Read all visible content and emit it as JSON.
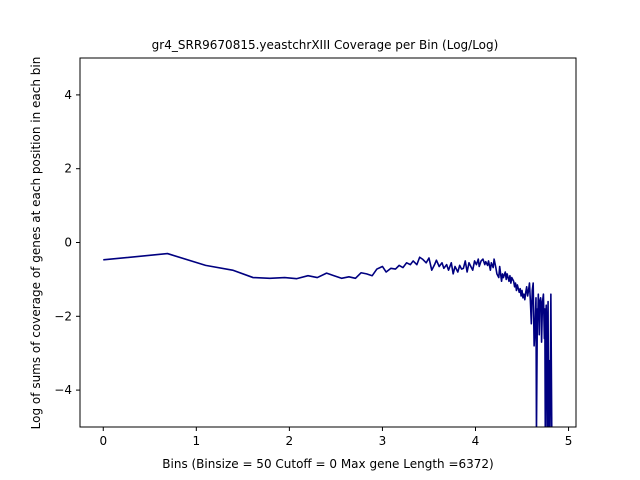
{
  "chart_data": {
    "type": "line",
    "title": "gr4_SRR9670815.yeastchrXIII Coverage per Bin (Log/Log)",
    "xlabel": "Bins  (Binsize = 50 Cutoff = 0 Max gene Length =6372)",
    "ylabel": "Log of sums of coverage of genes at each position in each bin",
    "xlim": [
      -0.25,
      5.08
    ],
    "ylim": [
      -5,
      5
    ],
    "x_ticks": [
      0,
      1,
      2,
      3,
      4,
      5
    ],
    "y_ticks": [
      -4,
      -2,
      0,
      2,
      4
    ],
    "x_tick_labels": [
      "0",
      "1",
      "2",
      "3",
      "4",
      "5"
    ],
    "y_tick_labels": [
      "−4",
      "−2",
      "0",
      "2",
      "4"
    ],
    "grid": false,
    "colors": {
      "line": "#000080",
      "frame": "#000000",
      "background": "#ffffff"
    },
    "series": [
      {
        "x": [
          0.0,
          0.69,
          1.1,
          1.39,
          1.61,
          1.79,
          1.95,
          2.08,
          2.2,
          2.3,
          2.4,
          2.48,
          2.56,
          2.64,
          2.71,
          2.77,
          2.83,
          2.89,
          2.94,
          3.0,
          3.04,
          3.09,
          3.14,
          3.18,
          3.22,
          3.26,
          3.3,
          3.33,
          3.37,
          3.4,
          3.43,
          3.47,
          3.5,
          3.53,
          3.56,
          3.58,
          3.61,
          3.64,
          3.66,
          3.69,
          3.71,
          3.74,
          3.76,
          3.78,
          3.81,
          3.83,
          3.85,
          3.87,
          3.89,
          3.91,
          3.93,
          3.95,
          3.97,
          3.99,
          4.01,
          4.03,
          4.04,
          4.06,
          4.08,
          4.1,
          4.11,
          4.13,
          4.14,
          4.16,
          4.17,
          4.19,
          4.2,
          4.22,
          4.23,
          4.25,
          4.26,
          4.28,
          4.29,
          4.3,
          4.32,
          4.33,
          4.34,
          4.36,
          4.37,
          4.38,
          4.39,
          4.41,
          4.42,
          4.43,
          4.44,
          4.45,
          4.47,
          4.48,
          4.49,
          4.5,
          4.51,
          4.52,
          4.53,
          4.54,
          4.55,
          4.56,
          4.57,
          4.58,
          4.59,
          4.6,
          4.61,
          4.62,
          4.63,
          4.64,
          4.65,
          4.655,
          4.665,
          4.67,
          4.675,
          4.685,
          4.69,
          4.7,
          4.705,
          4.71,
          4.72,
          4.73,
          4.74,
          4.745,
          4.75,
          4.755,
          4.76,
          4.765,
          4.77,
          4.775,
          4.78,
          4.785,
          4.79,
          4.8,
          4.81,
          4.82
        ],
        "values": [
          -0.47,
          -0.3,
          -0.62,
          -0.75,
          -0.95,
          -0.97,
          -0.95,
          -0.98,
          -0.9,
          -0.95,
          -0.83,
          -0.9,
          -0.97,
          -0.93,
          -0.97,
          -0.82,
          -0.85,
          -0.9,
          -0.72,
          -0.65,
          -0.8,
          -0.7,
          -0.72,
          -0.62,
          -0.68,
          -0.55,
          -0.6,
          -0.5,
          -0.6,
          -0.4,
          -0.45,
          -0.55,
          -0.42,
          -0.75,
          -0.6,
          -0.48,
          -0.65,
          -0.55,
          -0.7,
          -0.6,
          -0.75,
          -0.55,
          -0.85,
          -0.65,
          -0.8,
          -0.62,
          -0.72,
          -0.7,
          -0.5,
          -0.8,
          -0.55,
          -0.65,
          -0.75,
          -0.5,
          -0.6,
          -0.45,
          -0.65,
          -0.5,
          -0.45,
          -0.6,
          -0.52,
          -0.62,
          -0.5,
          -0.75,
          -0.55,
          -0.68,
          -0.45,
          -0.7,
          -0.85,
          -0.95,
          -0.65,
          -1.05,
          -0.85,
          -0.95,
          -0.8,
          -1.0,
          -0.85,
          -1.05,
          -0.9,
          -1.1,
          -0.95,
          -1.05,
          -1.2,
          -1.1,
          -1.3,
          -1.15,
          -1.35,
          -1.25,
          -1.45,
          -1.3,
          -1.5,
          -1.4,
          -1.55,
          -1.35,
          -1.2,
          -1.45,
          -1.3,
          -1.1,
          -1.6,
          -2.2,
          -1.3,
          -1.1,
          -2.8,
          -2.3,
          -1.5,
          -5.2,
          -1.8,
          -2.0,
          -1.4,
          -2.5,
          -1.6,
          -1.5,
          -1.7,
          -2.7,
          -1.6,
          -1.4,
          -2.6,
          -1.8,
          -5.2,
          -2.2,
          -1.7,
          -3.0,
          -5.2,
          -2.3,
          -1.6,
          -5.2,
          -3.2,
          -5.2,
          -1.4,
          -5.2
        ]
      }
    ]
  }
}
